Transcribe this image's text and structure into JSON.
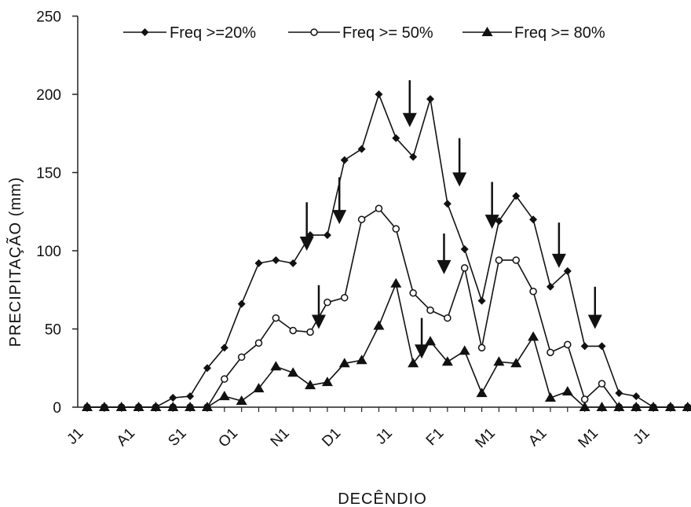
{
  "chart_data": {
    "type": "line",
    "title": "",
    "xlabel": "DECÊNDIO",
    "ylabel": "PRECIPITAÇÃO (mm)",
    "ylim": [
      0,
      250
    ],
    "yticks": [
      0,
      50,
      100,
      150,
      200,
      250
    ],
    "xticks": [
      {
        "index": 0,
        "label": "J1"
      },
      {
        "index": 3,
        "label": "A1"
      },
      {
        "index": 6,
        "label": "S1"
      },
      {
        "index": 9,
        "label": "O1"
      },
      {
        "index": 12,
        "label": "N1"
      },
      {
        "index": 15,
        "label": "D1"
      },
      {
        "index": 18,
        "label": "J1"
      },
      {
        "index": 21,
        "label": "F1"
      },
      {
        "index": 24,
        "label": "M1"
      },
      {
        "index": 27,
        "label": "A1"
      },
      {
        "index": 30,
        "label": "M1"
      },
      {
        "index": 33,
        "label": "J1"
      }
    ],
    "grid": false,
    "legend": "top",
    "series": [
      {
        "name": "Freq >=20%",
        "marker": "diamond",
        "values": [
          0,
          0,
          0,
          0,
          0,
          6,
          7,
          25,
          38,
          66,
          92,
          94,
          92,
          110,
          110,
          158,
          165,
          200,
          172,
          160,
          197,
          130,
          101,
          68,
          119,
          135,
          120,
          77,
          87,
          39,
          39,
          9,
          7,
          0,
          0,
          0
        ]
      },
      {
        "name": "Freq >= 50%",
        "marker": "circle",
        "values": [
          0,
          0,
          0,
          0,
          0,
          0,
          0,
          0,
          18,
          32,
          41,
          57,
          49,
          48,
          67,
          70,
          120,
          127,
          114,
          73,
          62,
          57,
          89,
          38,
          94,
          94,
          74,
          35,
          40,
          5,
          15,
          0,
          0,
          0,
          0,
          0
        ]
      },
      {
        "name": "Freq >= 80%",
        "marker": "triangle",
        "values": [
          0,
          0,
          0,
          0,
          0,
          0,
          0,
          0,
          7,
          4,
          12,
          26,
          22,
          14,
          16,
          28,
          30,
          52,
          79,
          28,
          42,
          29,
          36,
          9,
          29,
          28,
          45,
          6,
          10,
          0,
          0,
          0,
          0,
          0,
          0,
          0
        ]
      }
    ],
    "annotations": {
      "arrows": [
        {
          "index": 12.8,
          "y_top": 131,
          "y_tip": 100
        },
        {
          "index": 14.7,
          "y_top": 147,
          "y_tip": 117
        },
        {
          "index": 13.5,
          "y_top": 78,
          "y_tip": 50
        },
        {
          "index": 18.8,
          "y_top": 209,
          "y_tip": 179
        },
        {
          "index": 19.5,
          "y_top": 57,
          "y_tip": 31
        },
        {
          "index": 20.8,
          "y_top": 111,
          "y_tip": 85
        },
        {
          "index": 21.7,
          "y_top": 172,
          "y_tip": 141
        },
        {
          "index": 23.6,
          "y_top": 144,
          "y_tip": 114
        },
        {
          "index": 27.5,
          "y_top": 118,
          "y_tip": 89
        },
        {
          "index": 29.6,
          "y_top": 77,
          "y_tip": 50
        }
      ]
    }
  }
}
